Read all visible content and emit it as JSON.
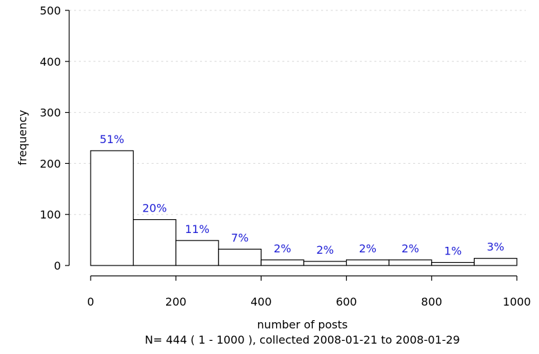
{
  "chart_data": {
    "type": "bar",
    "title": "",
    "xlabel": "number of posts",
    "ylabel": "frequency",
    "subtitle": "N= 444 ( 1 - 1000 ), collected 2008-01-21 to 2008-01-29",
    "bins": [
      {
        "start": 0,
        "end": 100,
        "value": 225,
        "label": "51%"
      },
      {
        "start": 100,
        "end": 200,
        "value": 90,
        "label": "20%"
      },
      {
        "start": 200,
        "end": 300,
        "value": 49,
        "label": "11%"
      },
      {
        "start": 300,
        "end": 400,
        "value": 32,
        "label": "7%"
      },
      {
        "start": 400,
        "end": 500,
        "value": 11,
        "label": "2%"
      },
      {
        "start": 500,
        "end": 600,
        "value": 8,
        "label": "2%"
      },
      {
        "start": 600,
        "end": 700,
        "value": 11,
        "label": "2%"
      },
      {
        "start": 700,
        "end": 800,
        "value": 11,
        "label": "2%"
      },
      {
        "start": 800,
        "end": 900,
        "value": 6,
        "label": "1%"
      },
      {
        "start": 900,
        "end": 1000,
        "value": 14,
        "label": "3%"
      }
    ],
    "xlim": [
      0,
      1000
    ],
    "ylim": [
      0,
      500
    ],
    "xticks": [
      "0",
      "200",
      "400",
      "600",
      "800",
      "1000"
    ],
    "yticks": [
      "0",
      "100",
      "200",
      "300",
      "400",
      "500"
    ],
    "grid": true,
    "colors": {
      "bar_fill": "#ffffff",
      "bar_stroke": "#000000",
      "label": "#1f1fd6",
      "grid": "#d9d9d9"
    }
  }
}
